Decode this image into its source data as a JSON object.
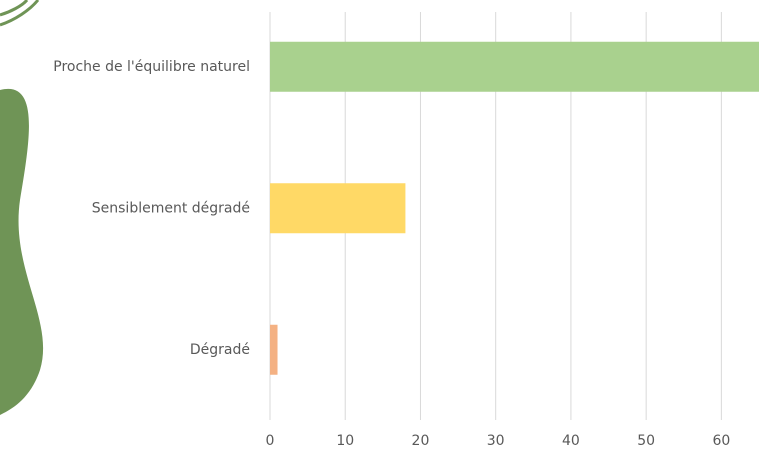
{
  "chart_data": {
    "type": "bar",
    "orientation": "horizontal",
    "categories": [
      "Proche de l'équilibre naturel",
      "Sensiblement dégradé",
      "Dégradé"
    ],
    "values": [
      65,
      18,
      1
    ],
    "colors": [
      "#a9d18e",
      "#ffd966",
      "#f4b183"
    ],
    "xlim": [
      0,
      65
    ],
    "xticks": [
      0,
      10,
      20,
      30,
      40,
      50,
      60
    ],
    "grid": true
  }
}
